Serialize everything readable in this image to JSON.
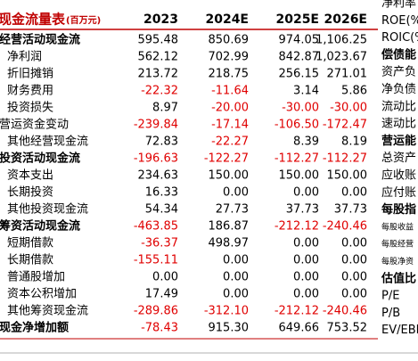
{
  "table": {
    "title": "现金流量表",
    "unit": "(百万元)",
    "columns": [
      "2023",
      "2024E",
      "2025E",
      "2026E"
    ],
    "rows": [
      [
        "经营活动现金流",
        "595.48",
        "850.69",
        "974.05",
        "1,106.25"
      ],
      [
        "净利润",
        "562.12",
        "702.99",
        "842.87",
        "1,023.67"
      ],
      [
        "折旧摊销",
        "213.72",
        "218.75",
        "256.15",
        "271.01"
      ],
      [
        "财务费用",
        "-22.32",
        "-11.64",
        "3.14",
        "5.86"
      ],
      [
        "投资损失",
        "8.97",
        "-20.00",
        "-30.00",
        "-30.00"
      ],
      [
        "营运资金变动",
        "-239.84",
        "-17.14",
        "-106.50",
        "-172.47"
      ],
      [
        "其他经营现金流",
        "72.83",
        "-22.27",
        "8.39",
        "8.19"
      ],
      [
        "投资活动现金流",
        "-196.63",
        "-122.27",
        "-112.27",
        "-112.27"
      ],
      [
        "资本支出",
        "234.63",
        "150.00",
        "150.00",
        "150.00"
      ],
      [
        "长期投资",
        "16.33",
        "0.00",
        "0.00",
        "0.00"
      ],
      [
        "其他投资现金流",
        "54.34",
        "27.73",
        "37.73",
        "37.73"
      ],
      [
        "筹资活动现金流",
        "-463.85",
        "186.87",
        "-212.12",
        "-240.46"
      ],
      [
        "短期借款",
        "-36.37",
        "498.97",
        "0.00",
        "0.00"
      ],
      [
        "长期借款",
        "-155.11",
        "0.00",
        "0.00",
        "0.00"
      ],
      [
        "普通股增加",
        "0.00",
        "0.00",
        "0.00",
        "0.00"
      ],
      [
        "资本公积增加",
        "17.49",
        "0.00",
        "0.00",
        "0.00"
      ],
      [
        "其他筹资现金流",
        "-289.86",
        "-312.10",
        "-212.12",
        "-240.46"
      ],
      [
        "现金净增加额",
        "-78.43",
        "915.30",
        "649.66",
        "753.52"
      ]
    ]
  },
  "side_labels": [
    "净利率",
    "ROE(%",
    "ROIC(%",
    "偿债能",
    "资产负",
    "净负债",
    "流动比",
    "速动比",
    "营运能",
    "总资产",
    "应收账",
    "应付账",
    "每股指",
    "每股收益",
    "每股经营",
    "每股净资",
    "估值比",
    "P/E",
    "P/B",
    "EV/EBI"
  ]
}
